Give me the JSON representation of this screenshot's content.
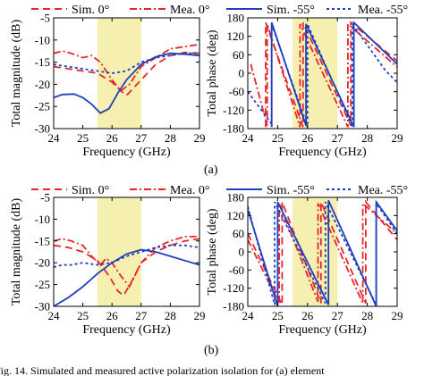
{
  "colors": {
    "sim0": "#e8262a",
    "mea0": "#e8262a",
    "sim55": "#1f3fbf",
    "mea55": "#1f3fbf",
    "band": "#f5f0b0"
  },
  "legend": [
    {
      "label": "Sim. 0°",
      "color": "#e8262a",
      "dash": "8,5"
    },
    {
      "label": "Mea. 0°",
      "color": "#e8262a",
      "dash": "8,3,2,3"
    },
    {
      "label": "Sim. -55°",
      "color": "#1f3fbf",
      "dash": ""
    },
    {
      "label": "Mea. -55°",
      "color": "#1f3fbf",
      "dash": "3,3"
    }
  ],
  "sublabels": [
    "(a)",
    "(b)"
  ],
  "caption": "Fig. 14.   Simulated and measured active polarization isolation for (a) element",
  "chart_data": [
    {
      "type": "line",
      "panel": "a-magnitude",
      "xlabel": "Frequency (GHz)",
      "ylabel": "Total magnitude (dB)",
      "xlim": [
        24,
        29
      ],
      "ylim": [
        -30,
        -5
      ],
      "xticks": [
        24,
        25,
        26,
        27,
        28,
        29
      ],
      "yticks": [
        -5,
        -10,
        -15,
        -20,
        -25,
        -30
      ],
      "band": [
        25.5,
        27
      ],
      "series": [
        {
          "name": "Sim. 0°",
          "x": [
            24,
            24.5,
            25,
            25.5,
            26,
            26.3,
            26.5,
            27,
            27.5,
            28,
            28.5,
            29
          ],
          "y": [
            -16,
            -16.5,
            -17,
            -17.5,
            -19.5,
            -21.5,
            -22.5,
            -19,
            -15.5,
            -13.5,
            -12.8,
            -13
          ]
        },
        {
          "name": "Mea. 0°",
          "x": [
            24,
            24.3,
            24.6,
            25,
            25.3,
            25.6,
            26,
            26.3,
            26.6,
            27,
            27.5,
            28,
            28.5,
            29
          ],
          "y": [
            -13,
            -12.5,
            -13,
            -14,
            -13.5,
            -15,
            -19,
            -21.5,
            -20,
            -16,
            -14,
            -12,
            -11.5,
            -11
          ]
        },
        {
          "name": "Sim. -55°",
          "x": [
            24,
            24.3,
            24.7,
            25,
            25.3,
            25.6,
            25.9,
            26.2,
            26.5,
            27,
            27.5,
            28,
            28.5,
            29
          ],
          "y": [
            -23,
            -22.3,
            -22.2,
            -23,
            -24.5,
            -26.5,
            -25.5,
            -22,
            -19,
            -15.5,
            -13.8,
            -13,
            -13.2,
            -13.5
          ]
        },
        {
          "name": "Mea. -55°",
          "x": [
            24,
            24.5,
            25,
            25.5,
            26,
            26.5,
            27,
            27.5,
            28,
            28.5,
            29
          ],
          "y": [
            -15.5,
            -16,
            -16.5,
            -17,
            -17.5,
            -17,
            -15,
            -14,
            -13.5,
            -13,
            -13
          ]
        }
      ]
    },
    {
      "type": "line",
      "panel": "a-phase",
      "xlabel": "Frequency (GHz)",
      "ylabel": "Total phase (deg)",
      "xlim": [
        24,
        29
      ],
      "ylim": [
        -180,
        180
      ],
      "xticks": [
        24,
        25,
        26,
        27,
        28,
        29
      ],
      "yticks": [
        180,
        120,
        60,
        0,
        -60,
        -120,
        -180
      ],
      "band": [
        25.5,
        27
      ],
      "series": [
        {
          "name": "Sim. 0°",
          "x": [
            24.6,
            24.6,
            25.85,
            25.85,
            27.45,
            27.45,
            29
          ],
          "y": [
            -175,
            165,
            -175,
            165,
            -170,
            165,
            40
          ]
        },
        {
          "name": "Mea. 0°",
          "x": [
            24.1,
            24.65,
            24.65,
            25.75,
            25.75,
            27.35,
            27.35,
            29
          ],
          "y": [
            30,
            -170,
            160,
            -175,
            160,
            -175,
            160,
            20
          ]
        },
        {
          "name": "Sim. -55°",
          "x": [
            24.8,
            24.8,
            25.95,
            25.95,
            27.55,
            27.55,
            29
          ],
          "y": [
            -175,
            165,
            -170,
            160,
            -175,
            165,
            30
          ]
        },
        {
          "name": "Mea. -55°",
          "x": [
            24,
            24.8,
            24.8,
            26,
            26,
            27.5,
            27.5,
            28.6,
            29
          ],
          "y": [
            -60,
            -165,
            160,
            -175,
            160,
            -175,
            160,
            10,
            -30
          ]
        }
      ]
    },
    {
      "type": "line",
      "panel": "b-magnitude",
      "xlabel": "Frequency (GHz)",
      "ylabel": "Total magnitude (dB)",
      "xlim": [
        24,
        29
      ],
      "ylim": [
        -30,
        -5
      ],
      "xticks": [
        24,
        25,
        26,
        27,
        28,
        29
      ],
      "yticks": [
        -5,
        -10,
        -15,
        -20,
        -25,
        -30
      ],
      "band": [
        25.5,
        27
      ],
      "series": [
        {
          "name": "Sim. 0°",
          "x": [
            24,
            24.5,
            25,
            25.5,
            25.9,
            26.2,
            26.4,
            26.7,
            27,
            27.5,
            28,
            28.5,
            29
          ],
          "y": [
            -16,
            -16.5,
            -17.5,
            -19.5,
            -23,
            -26.5,
            -27.5,
            -24,
            -20,
            -17.5,
            -16,
            -15,
            -14.5
          ]
        },
        {
          "name": "Mea. 0°",
          "x": [
            24,
            24.3,
            24.6,
            25,
            25.3,
            25.6,
            25.8,
            26,
            26.3,
            26.6,
            27,
            27.5,
            28,
            28.5,
            29
          ],
          "y": [
            -15,
            -14.5,
            -15,
            -16,
            -18.5,
            -20.5,
            -19,
            -20,
            -23,
            -25.5,
            -20,
            -16.5,
            -15,
            -14,
            -14
          ]
        },
        {
          "name": "Sim. -55°",
          "x": [
            24,
            24.5,
            25,
            25.5,
            26,
            26.5,
            27,
            27.5,
            28,
            28.5,
            29
          ],
          "y": [
            -30,
            -28,
            -25.5,
            -22.5,
            -20,
            -18,
            -17,
            -17.5,
            -18.5,
            -19.5,
            -20.5
          ]
        },
        {
          "name": "Mea. -55°",
          "x": [
            24,
            24.3,
            24.6,
            25,
            25.5,
            26,
            26.5,
            27,
            27.5,
            28,
            28.5,
            29
          ],
          "y": [
            -21,
            -20.5,
            -20.5,
            -20,
            -20.5,
            -20,
            -18.5,
            -17.5,
            -16.5,
            -16,
            -16,
            -16.5
          ]
        }
      ]
    },
    {
      "type": "line",
      "panel": "b-phase",
      "xlabel": "Frequency (GHz)",
      "ylabel": "Total phase (deg)",
      "xlim": [
        24,
        29
      ],
      "ylim": [
        -180,
        180
      ],
      "xticks": [
        24,
        25,
        26,
        27,
        28,
        29
      ],
      "yticks": [
        180,
        120,
        60,
        0,
        -60,
        -120,
        -180
      ],
      "band": [
        25.5,
        27
      ],
      "series": [
        {
          "name": "Sim. 0°",
          "x": [
            24,
            25.15,
            25.15,
            26.45,
            26.45,
            27.95,
            27.95,
            29
          ],
          "y": [
            60,
            -175,
            165,
            -170,
            165,
            -170,
            165,
            40
          ]
        },
        {
          "name": "Mea. 0°",
          "x": [
            24,
            25.05,
            25.05,
            26.35,
            26.35,
            27.85,
            27.85,
            29
          ],
          "y": [
            40,
            -170,
            160,
            -165,
            160,
            -170,
            160,
            60
          ]
        },
        {
          "name": "Sim. -55°",
          "x": [
            24,
            25.0,
            25.0,
            26.7,
            26.7,
            28.3,
            28.3,
            29
          ],
          "y": [
            140,
            -180,
            165,
            -175,
            170,
            -180,
            165,
            70
          ]
        },
        {
          "name": "Mea. -55°",
          "x": [
            24,
            24.9,
            24.9,
            26.6,
            26.6,
            28.3,
            28.3,
            29
          ],
          "y": [
            150,
            -175,
            165,
            -170,
            165,
            -175,
            160,
            60
          ]
        }
      ]
    }
  ]
}
